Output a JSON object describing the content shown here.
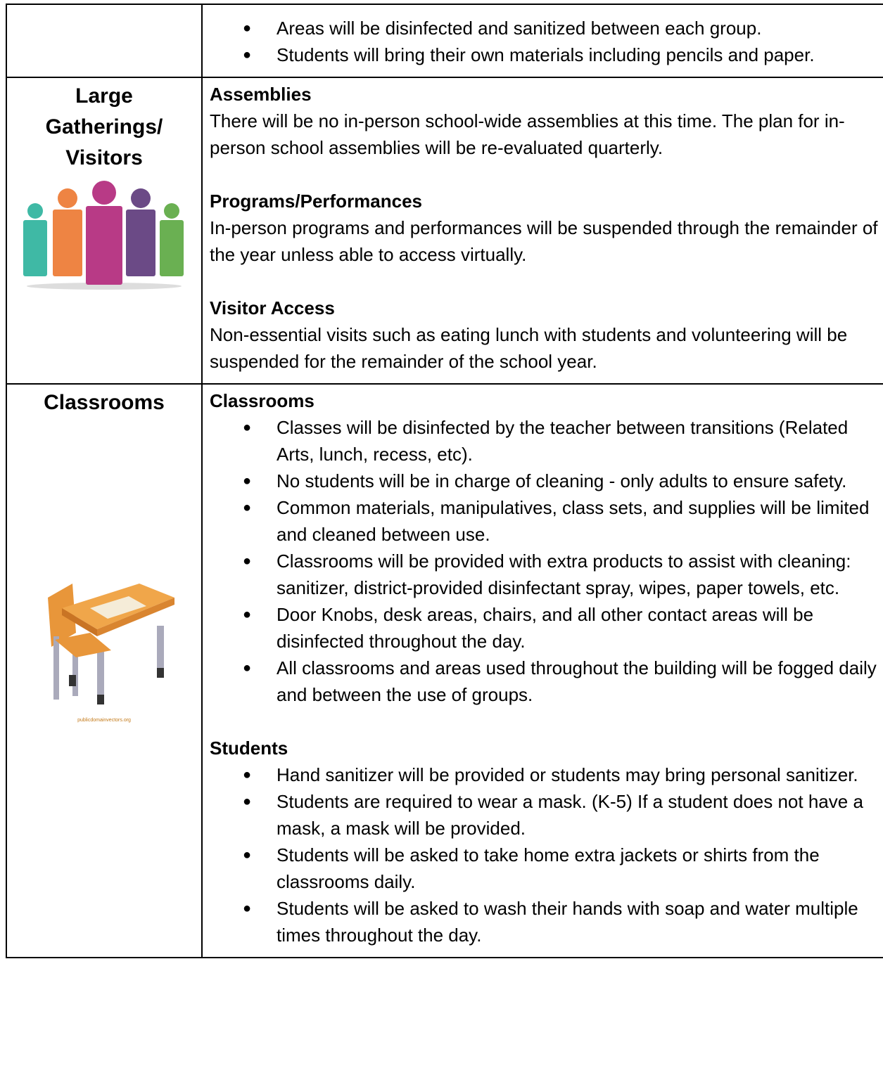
{
  "rows": [
    {
      "sections": [
        {
          "items": [
            "Areas will be disinfected and sanitized between each group.",
            "Students will bring their own materials including pencils and paper."
          ]
        }
      ]
    },
    {
      "heading_lines": [
        "Large",
        "Gatherings/",
        "Visitors"
      ],
      "sections": [
        {
          "title": "Assemblies",
          "text": "There will be no in-person school-wide assemblies at this time. The plan for in-person school assemblies will be re-evaluated quarterly."
        },
        {
          "title": "Programs/Performances",
          "text": "In-person programs and performances will be suspended through the remainder of the year unless able to access virtually."
        },
        {
          "title": "Visitor Access",
          "text": "Non-essential visits such as eating lunch with students and volunteering will be suspended for the remainder of the school year."
        }
      ]
    },
    {
      "heading_lines": [
        "Classrooms"
      ],
      "image_credit": "publicdomainvectors.org",
      "sections": [
        {
          "title": "Classrooms",
          "items": [
            "Classes will be disinfected by the teacher between transitions (Related Arts, lunch, recess, etc).",
            "No students will be in charge of cleaning - only adults to ensure safety.",
            "Common materials, manipulatives, class sets, and supplies will be limited and cleaned between use.",
            "Classrooms will be provided with extra products to assist with cleaning: sanitizer, district-provided disinfectant spray, wipes, paper towels, etc.",
            "Door Knobs, desk areas, chairs, and all other contact areas will be disinfected throughout the day.",
            "All classrooms and areas used throughout the building will be fogged daily and between the use of groups."
          ]
        },
        {
          "title": "Students",
          "items": [
            "Hand sanitizer will be provided or students may bring personal sanitizer.",
            "Students are required to wear a mask. (K-5) If a student does not have a mask, a mask will be provided.",
            "Students will be asked to take home extra jackets or shirts from the classrooms daily.",
            "Students will be asked to wash their hands with soap and water multiple times throughout the day."
          ]
        }
      ]
    }
  ]
}
